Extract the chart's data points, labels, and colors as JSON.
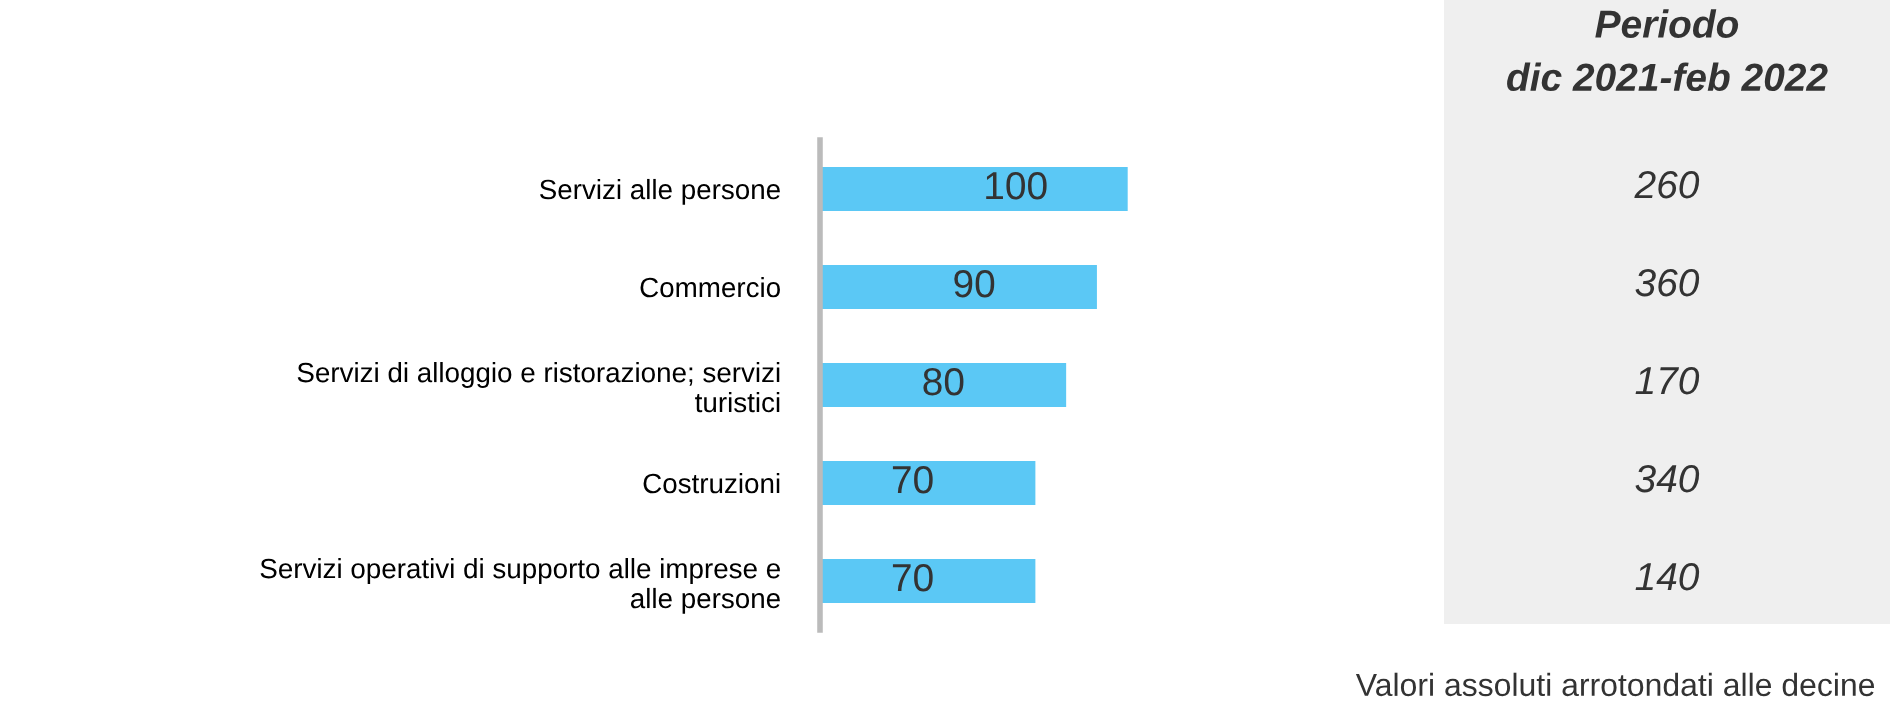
{
  "chart_data": [
    {
      "type": "bar",
      "orientation": "horizontal",
      "categories": [
        "Servizi alle persone",
        "Commercio",
        "Servizi di alloggio e ristorazione; servizi\nturistici",
        "Costruzioni",
        "Servizi operativi di supporto alle imprese e\nalle persone"
      ],
      "values": [
        100,
        90,
        80,
        70,
        70
      ],
      "color": "#5bc8f5",
      "data_labels": true,
      "annotations": [
        "Valori assoluti arrotondati alle decine"
      ]
    },
    {
      "type": "other",
      "title": "Periodo\ndic 2021-feb 2022",
      "categories": [
        null,
        null,
        null,
        null,
        null
      ],
      "values": [
        260,
        360,
        170,
        340,
        140
      ],
      "data_labels": true
    }
  ]
}
